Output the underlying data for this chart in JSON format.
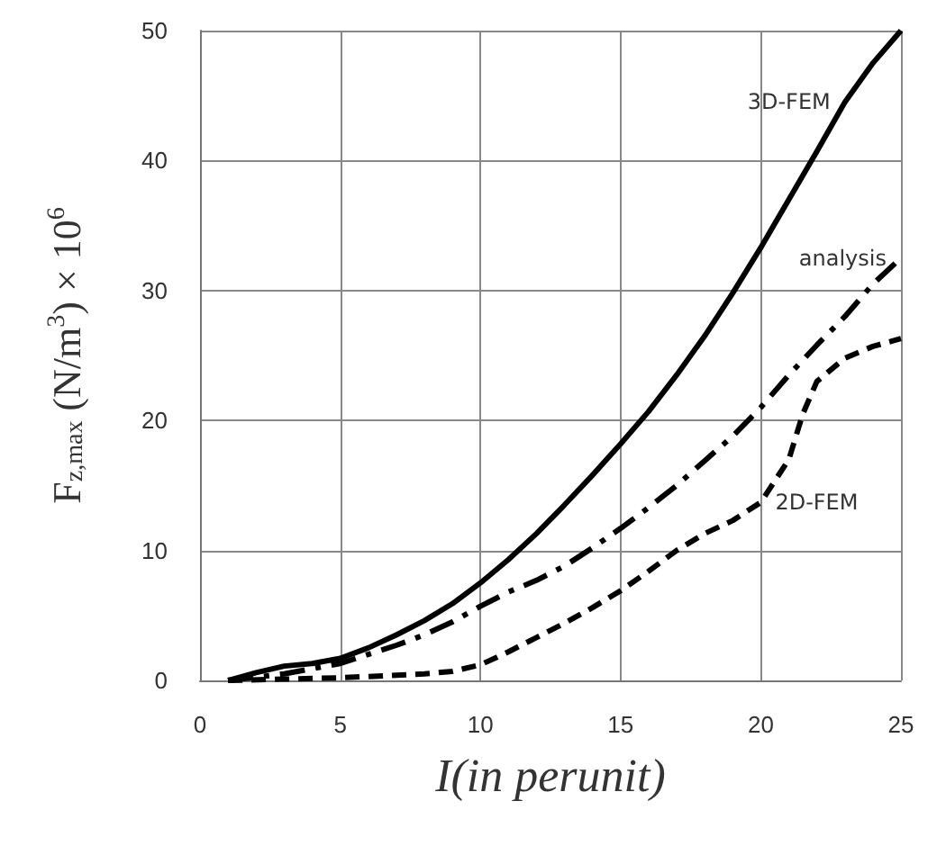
{
  "chart_data": {
    "type": "line",
    "xlabel": "I(in perunit)",
    "ylabel": "F$_{z,max}$ (N/m$^{3}$) × 10$^{6}$",
    "xlim": [
      0,
      25
    ],
    "xticks": [
      0,
      5,
      10,
      15,
      20,
      25
    ],
    "ylim": [
      0,
      50
    ],
    "yticks": [
      0,
      10,
      20,
      30,
      40,
      50
    ],
    "grid": true,
    "legend": false,
    "marker": "none",
    "series": [
      {
        "name": "3D-FEM",
        "color": "#000000",
        "line_style": "solid",
        "x": [
          1,
          2,
          3,
          4,
          5,
          6,
          7,
          8,
          9,
          10,
          11,
          12,
          13,
          14,
          15,
          16,
          17,
          18,
          19,
          20,
          21,
          22,
          23,
          24,
          25
        ],
        "values": [
          0,
          0.6,
          1.1,
          1.3,
          1.7,
          2.5,
          3.5,
          4.6,
          5.9,
          7.5,
          9.3,
          11.3,
          13.5,
          15.8,
          18.2,
          20.7,
          23.5,
          26.5,
          29.8,
          33.3,
          37,
          40.7,
          44.5,
          47.5,
          50
        ]
      },
      {
        "name": "analysis",
        "color": "#000000",
        "line_style": "dashdot",
        "x": [
          1,
          3,
          5,
          6,
          7,
          8,
          9,
          10,
          11,
          12,
          13,
          14,
          15,
          16,
          17,
          18,
          19,
          20,
          21,
          22,
          23,
          24,
          25
        ],
        "values": [
          0,
          0.5,
          1.3,
          2,
          2.7,
          3.5,
          4.5,
          5.7,
          6.8,
          7.7,
          8.8,
          10.2,
          11.7,
          13.3,
          15,
          16.9,
          18.8,
          21,
          23.5,
          25.8,
          28,
          30.5,
          32.5
        ]
      },
      {
        "name": "2D-FEM",
        "color": "#000000",
        "line_style": "dashed",
        "x": [
          1,
          3,
          5,
          7,
          8,
          9,
          10,
          11,
          12,
          13,
          14,
          15,
          16,
          17,
          18,
          19,
          20,
          21,
          21.5,
          22,
          23,
          24,
          25
        ],
        "values": [
          0,
          0.1,
          0.2,
          0.4,
          0.5,
          0.7,
          1.2,
          2.2,
          3.3,
          4.4,
          5.6,
          6.9,
          8.4,
          10,
          11.3,
          12.3,
          13.7,
          17,
          20.5,
          23,
          24.8,
          25.7,
          26.3
        ]
      }
    ]
  }
}
